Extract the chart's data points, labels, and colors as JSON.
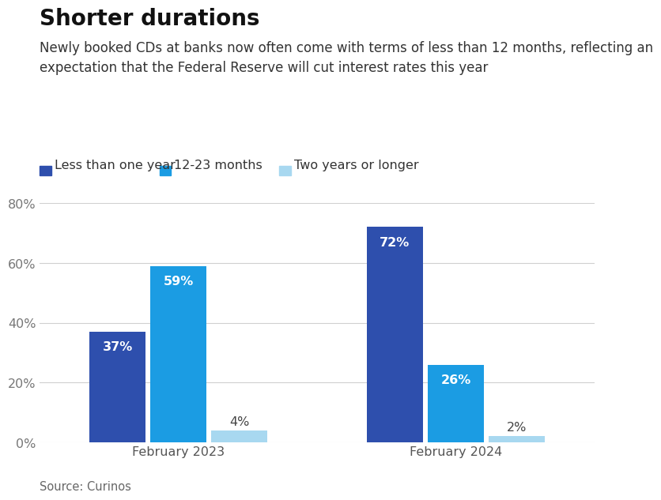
{
  "title": "Shorter durations",
  "subtitle": "Newly booked CDs at banks now often come with terms of less than 12 months, reflecting an\nexpectation that the Federal Reserve will cut interest rates this year",
  "source": "Source: Curinos",
  "groups": [
    "February 2023",
    "February 2024"
  ],
  "series": [
    {
      "label": "Less than one year",
      "values": [
        37,
        72
      ],
      "color": "#2E4FAD"
    },
    {
      "label": "12-23 months",
      "values": [
        59,
        26
      ],
      "color": "#1B9CE3"
    },
    {
      "label": "Two years or longer",
      "values": [
        4,
        2
      ],
      "color": "#A8D8F0"
    }
  ],
  "ylim": [
    0,
    80
  ],
  "yticks": [
    0,
    20,
    40,
    60,
    80
  ],
  "ytick_labels": [
    "0%",
    "20%",
    "40%",
    "60%",
    "80%"
  ],
  "bar_width": 0.22,
  "background_color": "#ffffff",
  "title_fontsize": 20,
  "subtitle_fontsize": 12,
  "legend_fontsize": 11.5,
  "tick_fontsize": 11.5,
  "label_fontsize": 11.5,
  "source_fontsize": 10.5
}
